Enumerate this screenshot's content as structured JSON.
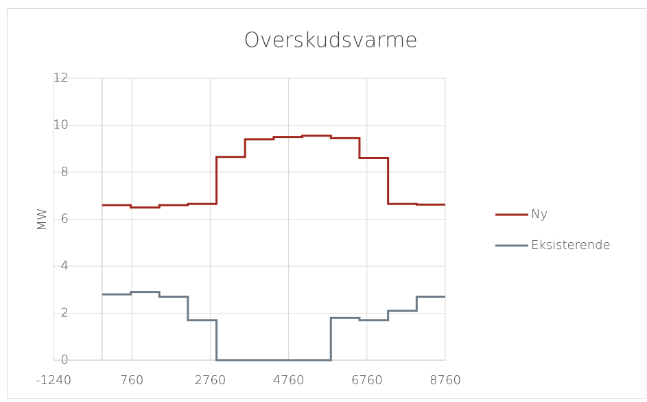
{
  "chart_data": {
    "type": "line",
    "title": "Overskudsvarme",
    "y_label": "MW",
    "x": [
      0,
      730,
      730,
      1460,
      1460,
      2190,
      2190,
      2920,
      2920,
      3650,
      3650,
      4380,
      4380,
      5110,
      5110,
      5840,
      5840,
      6570,
      6570,
      7300,
      7300,
      8030,
      8030,
      8760
    ],
    "series": [
      {
        "name": "Ny",
        "color": "#a0281e",
        "values": [
          6.6,
          6.6,
          6.5,
          6.5,
          6.6,
          6.6,
          6.65,
          6.65,
          8.65,
          8.65,
          9.4,
          9.4,
          9.5,
          9.5,
          9.55,
          9.55,
          9.45,
          9.45,
          8.6,
          8.6,
          6.65,
          6.65,
          6.62,
          6.62
        ]
      },
      {
        "name": "Eksisterende",
        "color": "#6d7b87",
        "values": [
          2.8,
          2.8,
          2.9,
          2.9,
          2.7,
          2.7,
          1.7,
          1.7,
          0,
          0,
          0,
          0,
          0,
          0,
          0,
          0,
          1.8,
          1.8,
          1.7,
          1.7,
          2.1,
          2.1,
          2.7,
          2.7
        ]
      }
    ],
    "xlim": [
      -1240,
      8760
    ],
    "xticks": [
      -1240,
      760,
      2760,
      4760,
      6760,
      8760
    ],
    "ylim": [
      0,
      12
    ],
    "yticks": [
      0,
      2,
      4,
      6,
      8,
      10,
      12
    ],
    "grid": true,
    "legend": "right"
  }
}
